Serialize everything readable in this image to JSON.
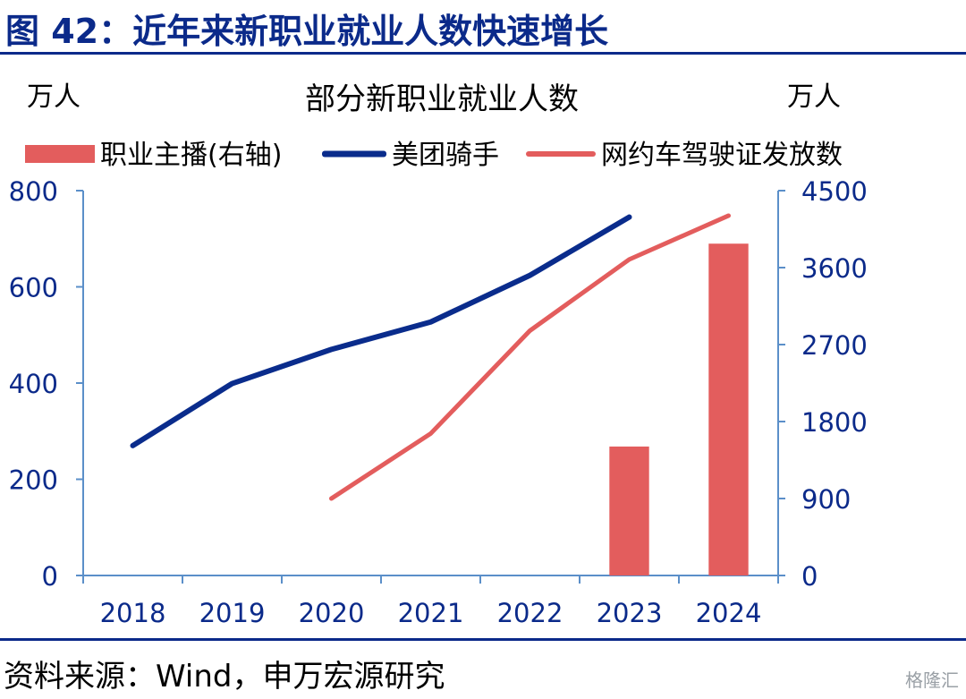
{
  "figure": {
    "title": "图 42：近年来新职业就业人数快速增长",
    "source": "资料来源：Wind，申万宏源研究",
    "watermark": "格隆汇"
  },
  "colors": {
    "title_blue": "#0b2a8a",
    "axis": "#5b8fc9",
    "anchor_bar": "#e35d5d",
    "meituan_line": "#0a2c8c",
    "ridehail_line": "#e35d5d"
  },
  "chart_data": {
    "type": "bar+line",
    "title": "部分新职业就业人数",
    "left_unit": "万人",
    "right_unit": "万人",
    "categories": [
      "2018",
      "2019",
      "2020",
      "2021",
      "2022",
      "2023",
      "2024"
    ],
    "y_left": {
      "ylim": [
        0,
        800
      ],
      "ticks": [
        "0",
        "200",
        "400",
        "600",
        "800"
      ]
    },
    "y_right": {
      "ylim": [
        0,
        4500
      ],
      "ticks": [
        "0",
        "900",
        "1800",
        "2700",
        "3600",
        "4500"
      ]
    },
    "series": [
      {
        "name": "职业主播(右轴)",
        "type": "bar",
        "axis": "right",
        "values": [
          null,
          null,
          null,
          null,
          null,
          1508,
          3880
        ]
      },
      {
        "name": "美团骑手",
        "type": "line",
        "axis": "left",
        "values": [
          270,
          399,
          470,
          527,
          624,
          745,
          null
        ]
      },
      {
        "name": "网约车驾驶证发放数",
        "type": "line",
        "axis": "left",
        "values": [
          null,
          null,
          160,
          295,
          509,
          657,
          748
        ]
      }
    ],
    "legend": "top",
    "grid": false
  }
}
